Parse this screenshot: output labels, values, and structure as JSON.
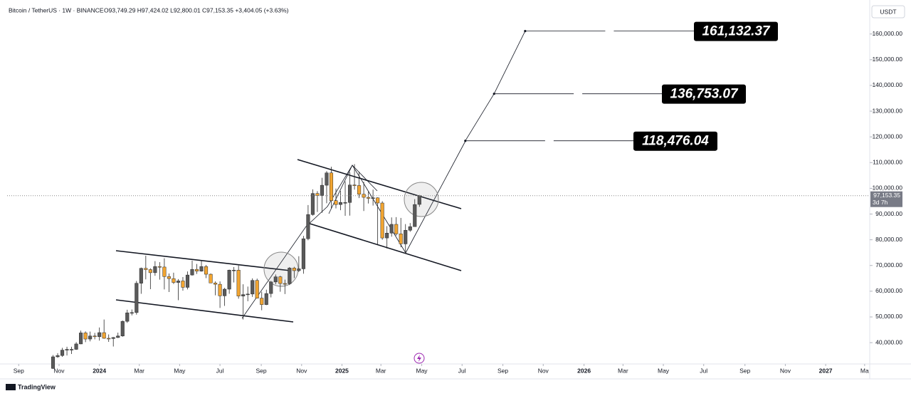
{
  "chart_data": {
    "type": "candlestick",
    "title": "Bitcoin / TetherUS · 1W · BINANCE",
    "ohlc_legend": "O93,749.29 H97,424.02 L92,800.01 C97,153.35 +3,404.05 (+3.63%)",
    "currency": "USDT",
    "last_price_label": "97,153.35",
    "countdown": "3d 7h",
    "brand": "TradingView",
    "up_color": "#5a5a5a",
    "down_color": "#f2a531",
    "x": [
      7.4,
      8.4,
      9.4,
      10.4,
      11.4,
      12.4,
      13.4,
      14.4,
      15.4,
      16.4,
      17.4,
      18.4,
      19.4,
      20.4,
      21.4,
      22.4,
      23.4,
      24.4,
      25.4,
      26.4,
      27.4,
      28.4,
      29.4,
      30.4,
      31.4,
      32.4,
      33.4,
      34.4,
      35.4,
      36.4,
      37.4,
      38.4,
      39.4,
      40.4,
      41.4,
      42.4,
      43.4,
      44.4,
      45.4,
      46.4,
      47.4,
      48.4,
      49.4,
      50.4,
      51.4,
      52.4,
      53.4,
      54.4,
      55.4,
      56.4,
      57.4,
      58.4,
      59.4,
      60.4,
      61.4,
      62.4,
      63.4,
      64.4,
      65.4,
      66.4,
      67.4,
      68.4,
      69.4,
      70.4,
      71.4,
      72.4,
      73.4,
      74.4,
      75.4,
      76.4,
      77.4,
      78.4,
      79.4,
      80.4,
      81.4,
      82.4,
      83.4,
      84.4,
      85.4,
      86.4
    ],
    "open": [
      30000,
      34500,
      35000,
      37100,
      37400,
      37400,
      39500,
      43800,
      41400,
      42600,
      42300,
      43900,
      41700,
      41600,
      42000,
      42600,
      48300,
      51600,
      51700,
      63100,
      68900,
      68400,
      67200,
      69600,
      69400,
      65700,
      64900,
      63400,
      64000,
      61500,
      66300,
      68500,
      67800,
      69600,
      66600,
      63200,
      62700,
      58200,
      60800,
      68200,
      68200,
      58100,
      58700,
      58900,
      64200,
      57300,
      54800,
      59100,
      63600,
      65600,
      63000,
      62900,
      69000,
      68000,
      68700,
      80400,
      89800,
      98000,
      97200,
      101200,
      106000,
      95200,
      93700,
      94500,
      94500,
      101300,
      101100,
      97700,
      96500,
      96100,
      96300,
      94300,
      80700,
      82600,
      86000,
      82300,
      78400,
      83700,
      85100,
      93749.29
    ],
    "high": [
      35200,
      35900,
      38000,
      38400,
      38400,
      40200,
      44700,
      44400,
      44300,
      43800,
      45900,
      49000,
      43200,
      42200,
      43900,
      48600,
      52800,
      52900,
      64000,
      69200,
      73800,
      68900,
      71700,
      71300,
      72800,
      66900,
      67200,
      64700,
      65500,
      67700,
      71900,
      70600,
      71900,
      70200,
      66900,
      63800,
      63800,
      61300,
      68400,
      69400,
      70000,
      62700,
      61800,
      65000,
      64900,
      59800,
      60600,
      64000,
      66500,
      66000,
      64500,
      69400,
      69500,
      73600,
      81500,
      93500,
      99600,
      98900,
      104100,
      106700,
      108400,
      99900,
      99000,
      102700,
      106300,
      109400,
      106500,
      102500,
      98900,
      99500,
      96500,
      95000,
      85300,
      88700,
      88800,
      88500,
      86100,
      86500,
      95800,
      97424.02
    ],
    "low": [
      29800,
      34100,
      34500,
      35000,
      35600,
      37200,
      39400,
      40200,
      40500,
      41300,
      40800,
      41500,
      40300,
      38500,
      41800,
      42300,
      47700,
      50600,
      50900,
      59000,
      64600,
      60800,
      66000,
      64500,
      60700,
      59700,
      62800,
      56500,
      60200,
      60700,
      66100,
      66700,
      67600,
      65100,
      63400,
      58400,
      53500,
      54300,
      59000,
      63400,
      57100,
      49000,
      56100,
      57800,
      57200,
      52600,
      54600,
      57600,
      62700,
      59800,
      58900,
      62400,
      65100,
      67500,
      66800,
      79800,
      89400,
      90800,
      90500,
      94200,
      92200,
      92200,
      91500,
      89300,
      89400,
      99500,
      96200,
      91200,
      94100,
      93300,
      78200,
      80000,
      76600,
      81200,
      81600,
      77100,
      74500,
      83100,
      85100,
      92800.01
    ],
    "close": [
      34500,
      35000,
      37100,
      37400,
      37400,
      39500,
      43800,
      41400,
      42600,
      42300,
      43900,
      41700,
      41600,
      42000,
      42600,
      48300,
      51600,
      51700,
      63100,
      68900,
      68400,
      67200,
      69600,
      69400,
      65700,
      64900,
      63400,
      64000,
      61500,
      66300,
      68500,
      67800,
      69600,
      66600,
      63200,
      62700,
      58200,
      60800,
      68200,
      68200,
      58100,
      58700,
      58900,
      64200,
      57300,
      54800,
      59100,
      63600,
      65600,
      63000,
      62900,
      69000,
      68000,
      68700,
      80400,
      89800,
      98000,
      97200,
      101200,
      106000,
      95200,
      93700,
      94500,
      94500,
      101300,
      101100,
      97700,
      96500,
      96100,
      96300,
      94300,
      80700,
      82600,
      86000,
      82300,
      78400,
      83700,
      85100,
      93700,
      97153.35
    ],
    "targets": {
      "x": [
        96.3,
        102.5,
        109.2
      ],
      "values": [
        118476.04,
        136753.07,
        161132.37
      ],
      "value_labels": [
        "118,476.04",
        "136,753.07",
        "161,132.37"
      ]
    },
    "xlim": [
      -2.5,
      183.5
    ],
    "ylim": [
      32000,
      171000
    ],
    "xticks": [
      {
        "value": 0,
        "label": "Sep"
      },
      {
        "value": 8.7,
        "label": "Nov"
      },
      {
        "value": 17.4,
        "label": "2024"
      },
      {
        "value": 26,
        "label": "Mar"
      },
      {
        "value": 34.7,
        "label": "May"
      },
      {
        "value": 43.4,
        "label": "Jul"
      },
      {
        "value": 52.3,
        "label": "Sep"
      },
      {
        "value": 61,
        "label": "Nov"
      },
      {
        "value": 69.7,
        "label": "2025"
      },
      {
        "value": 78.1,
        "label": "Mar"
      },
      {
        "value": 86.9,
        "label": "May"
      },
      {
        "value": 95.6,
        "label": "Jul"
      },
      {
        "value": 104.4,
        "label": "Sep"
      },
      {
        "value": 113.1,
        "label": "Nov"
      },
      {
        "value": 121.9,
        "label": "2026"
      },
      {
        "value": 130.3,
        "label": "Mar"
      },
      {
        "value": 139,
        "label": "May"
      },
      {
        "value": 147.7,
        "label": "Jul"
      },
      {
        "value": 156.6,
        "label": "Sep"
      },
      {
        "value": 165.3,
        "label": "Nov"
      },
      {
        "value": 174,
        "label": "2027"
      },
      {
        "value": 182.4,
        "label": "Ma"
      }
    ],
    "yticks": [
      {
        "value": 40000,
        "label": "40,000.00"
      },
      {
        "value": 50000,
        "label": "50,000.00"
      },
      {
        "value": 60000,
        "label": "60,000.00"
      },
      {
        "value": 70000,
        "label": "70,000.00"
      },
      {
        "value": 80000,
        "label": "80,000.00"
      },
      {
        "value": 90000,
        "label": "90,000.00"
      },
      {
        "value": 100000,
        "label": "100,000.00"
      },
      {
        "value": 110000,
        "label": "110,000.00"
      },
      {
        "value": 120000,
        "label": "120,000.00"
      },
      {
        "value": 130000,
        "label": "130,000.00"
      },
      {
        "value": 140000,
        "label": "140,000.00"
      },
      {
        "value": 150000,
        "label": "150,000.00"
      },
      {
        "value": 160000,
        "label": "160,000.00"
      }
    ]
  }
}
